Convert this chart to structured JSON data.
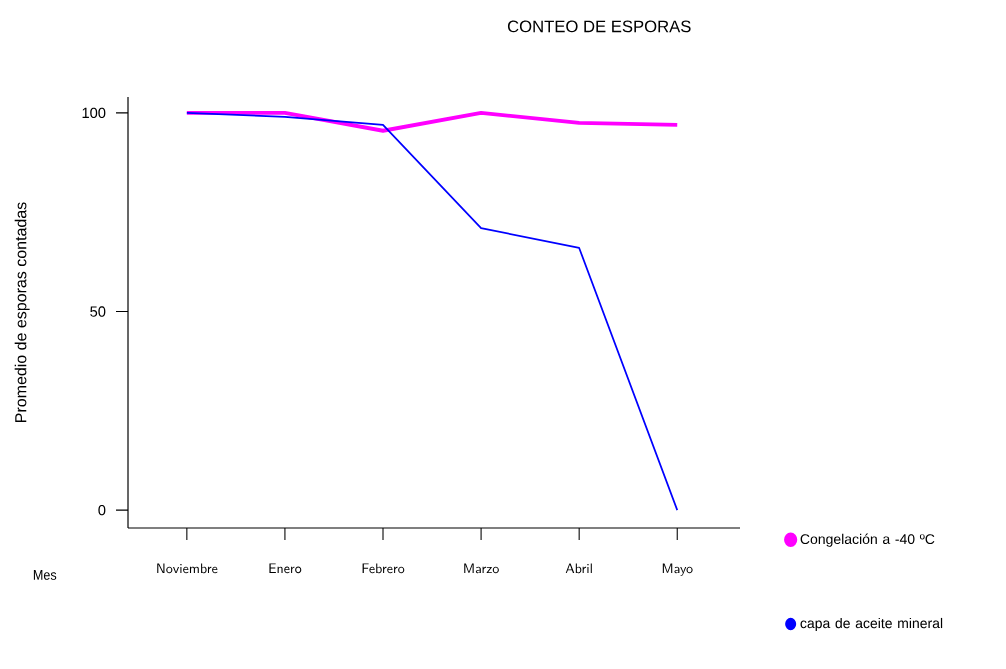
{
  "chart_data": {
    "type": "line",
    "title": "CONTEO DE ESPORAS",
    "xlabel": "Mes",
    "ylabel": "Promedio de esporas contadas",
    "categories": [
      "Noviembre",
      "Enero",
      "Febrero",
      "Marzo",
      "Abril",
      "Mayo"
    ],
    "series": [
      {
        "name": "Congelación a -40 ºC",
        "color": "#ff00ff",
        "values": [
          100,
          100,
          95.5,
          100,
          97.5,
          97
        ]
      },
      {
        "name": "capa de aceite mineral",
        "color": "#0000ff",
        "values": [
          100,
          99,
          97,
          71,
          66,
          0
        ]
      }
    ],
    "ylim": [
      -4.5,
      104
    ],
    "yticks": [
      0,
      50,
      100
    ],
    "legend": "right"
  }
}
